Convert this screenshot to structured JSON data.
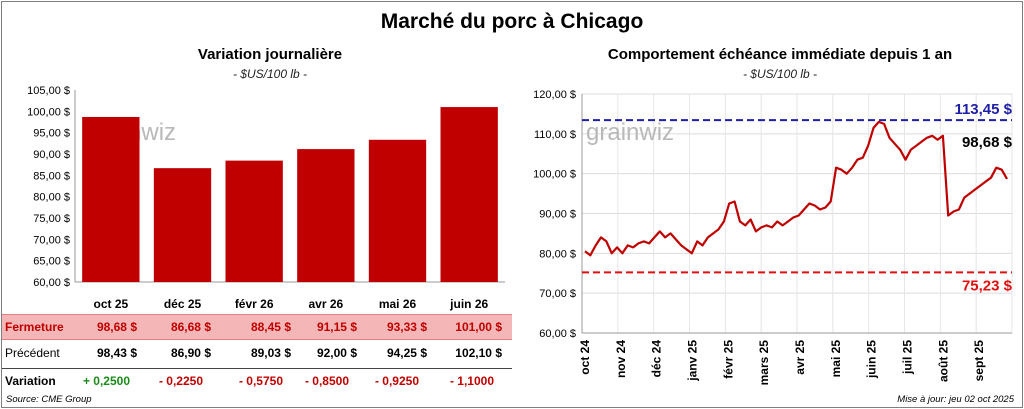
{
  "title": "Marché du porc à Chicago",
  "left_panel": {
    "title": "Variation  journalière",
    "unit": "- $US/100 lb -"
  },
  "right_panel": {
    "title": "Comportement  échéance immédiate depuis 1 an",
    "unit": "- $US/100 lb -"
  },
  "watermark": "grainwiz",
  "chart_data": [
    {
      "type": "bar",
      "categories": [
        "oct 25",
        "déc 25",
        "févr 26",
        "avr 26",
        "mai 26",
        "juin 26"
      ],
      "values": [
        98.68,
        86.68,
        88.45,
        91.15,
        93.33,
        101.0
      ],
      "ylim": [
        60,
        105
      ],
      "yticks": [
        "60,00 $",
        "65,00 $",
        "70,00 $",
        "75,00 $",
        "80,00 $",
        "85,00 $",
        "90,00 $",
        "95,00 $",
        "100,00 $",
        "105,00 $"
      ],
      "color": "#c00000",
      "grid": false
    },
    {
      "type": "line",
      "x_labels": [
        "oct 24",
        "nov 24",
        "déc 24",
        "janv 25",
        "févr 25",
        "mars 25",
        "avr 25",
        "mai 25",
        "juin 25",
        "juil 25",
        "août 25",
        "sept 25"
      ],
      "ylim": [
        60,
        120
      ],
      "yticks": [
        "60,00 $",
        "70,00 $",
        "80,00 $",
        "90,00 $",
        "100,00 $",
        "110,00 $",
        "120,00 $"
      ],
      "y": [
        80.5,
        79.5,
        82.0,
        84.0,
        83.0,
        80.0,
        81.5,
        80.0,
        82.0,
        81.5,
        82.5,
        83.0,
        82.5,
        84.0,
        85.5,
        84.0,
        85.0,
        83.5,
        82.0,
        81.0,
        80.0,
        83.0,
        82.0,
        84.0,
        85.0,
        86.0,
        88.0,
        92.5,
        93.0,
        88.0,
        87.0,
        88.5,
        85.5,
        86.5,
        87.0,
        86.5,
        88.0,
        87.0,
        88.0,
        89.0,
        89.5,
        91.0,
        92.5,
        92.0,
        91.0,
        91.5,
        93.0,
        101.5,
        101.0,
        100.0,
        101.5,
        103.5,
        104.0,
        107.0,
        111.5,
        113.0,
        112.5,
        109.0,
        107.5,
        106.0,
        103.5,
        106.0,
        107.0,
        108.0,
        109.0,
        109.5,
        108.5,
        109.5,
        89.5,
        90.5,
        91.0,
        94.0,
        95.0,
        96.0,
        97.0,
        98.0,
        99.0,
        101.5,
        101.0,
        98.68
      ],
      "series_color": "#c00000",
      "ref_high": {
        "value": 113.45,
        "label": "113,45 $",
        "color": "#1f1fa8"
      },
      "ref_low": {
        "value": 75.23,
        "label": "75,23 $",
        "color": "#e01010"
      },
      "last_label": "98,68 $",
      "grid": true
    }
  ],
  "table": {
    "rows": [
      {
        "label": "Fermeture",
        "cells": [
          "98,68  $",
          "86,68  $",
          "88,45  $",
          "91,15  $",
          "93,33  $",
          "101,00  $"
        ]
      },
      {
        "label": "Précédent",
        "cells": [
          "98,43  $",
          "86,90  $",
          "89,03  $",
          "92,00  $",
          "94,25  $",
          "102,10  $"
        ]
      },
      {
        "label": "Variation",
        "cells": [
          "+ 0,2500",
          "- 0,2250",
          "- 0,5750",
          "- 0,8500",
          "- 0,9250",
          "- 1,1000"
        ]
      }
    ]
  },
  "footer": {
    "source": "Source: CME Group",
    "updated": "Mise à jour: jeu 02 oct 2025"
  }
}
